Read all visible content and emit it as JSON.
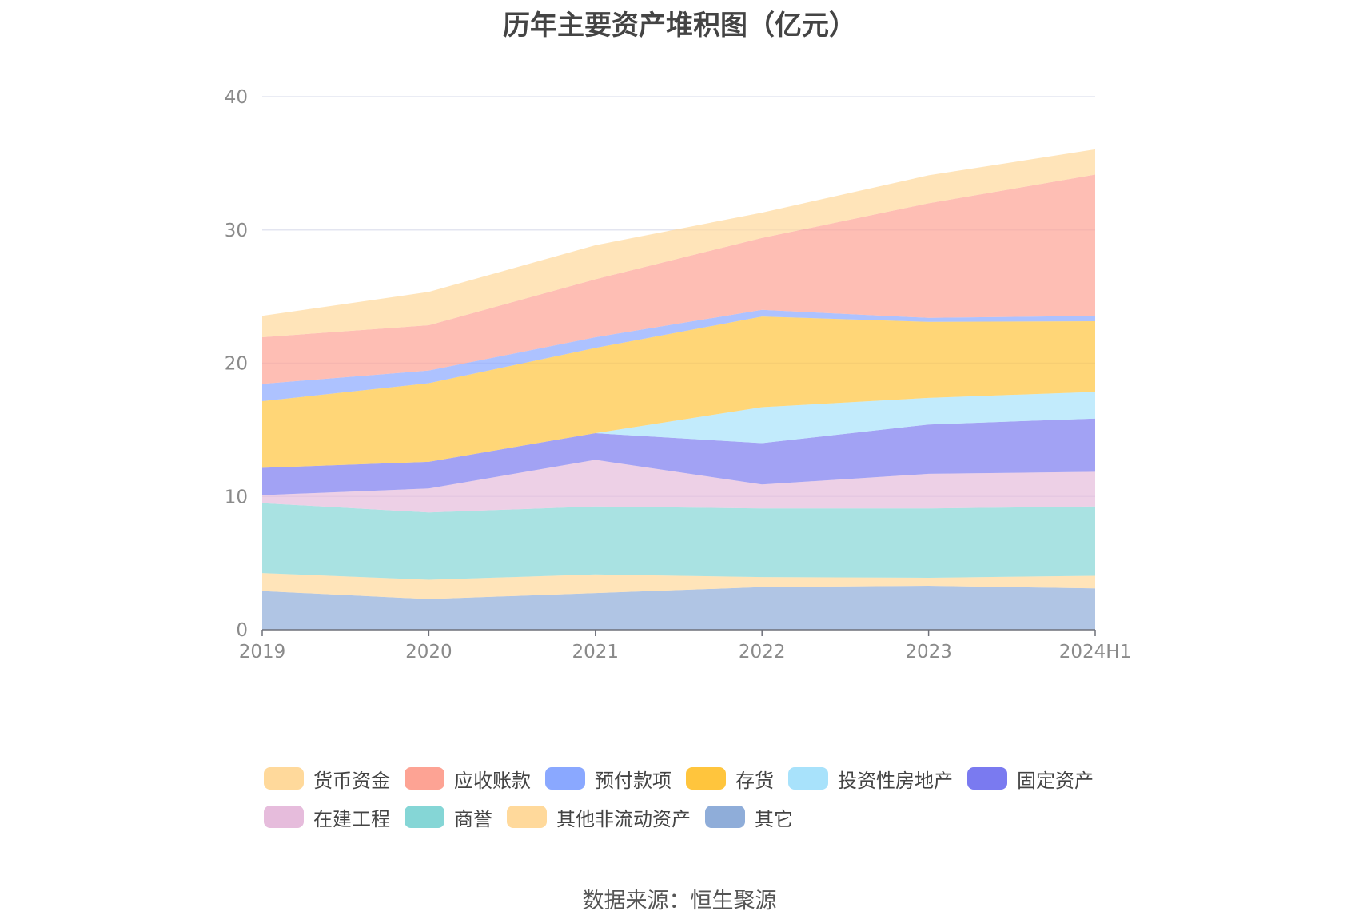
{
  "chart_data": {
    "type": "area",
    "title": "历年主要资产堆积图（亿元）",
    "x": [
      "2019",
      "2020",
      "2021",
      "2022",
      "2023",
      "2024H1"
    ],
    "ylim": [
      0,
      40
    ],
    "yticks": [
      0,
      10,
      20,
      30,
      40
    ],
    "stacked": true,
    "grid": true,
    "legend_position": "bottom",
    "series": [
      {
        "name": "其它",
        "color": "#8fadd9",
        "values": [
          2.9,
          2.3,
          2.75,
          3.2,
          3.3,
          3.1
        ]
      },
      {
        "name": "其他非流动资产",
        "color": "#ffd99b",
        "values": [
          1.35,
          1.45,
          1.4,
          0.75,
          0.6,
          0.95
        ]
      },
      {
        "name": "商誉",
        "color": "#85d6d6",
        "values": [
          5.25,
          5.05,
          5.1,
          5.15,
          5.2,
          5.2
        ]
      },
      {
        "name": "在建工程",
        "color": "#e6bcdc",
        "values": [
          0.6,
          1.8,
          3.5,
          1.8,
          2.6,
          2.6
        ]
      },
      {
        "name": "固定资产",
        "color": "#7a7af0",
        "values": [
          2.05,
          2.0,
          2.0,
          3.1,
          3.7,
          4.0
        ]
      },
      {
        "name": "投资性房地产",
        "color": "#a8e2fb",
        "values": [
          0.0,
          0.0,
          0.0,
          2.7,
          2.0,
          2.0
        ]
      },
      {
        "name": "存货",
        "color": "#ffc53d",
        "values": [
          5.0,
          5.9,
          6.4,
          6.8,
          5.7,
          5.3
        ]
      },
      {
        "name": "预付款项",
        "color": "#8aa8ff",
        "values": [
          1.3,
          0.95,
          0.8,
          0.5,
          0.3,
          0.4
        ]
      },
      {
        "name": "应收账款",
        "color": "#fda394",
        "values": [
          3.5,
          3.4,
          4.35,
          5.4,
          8.6,
          10.6
        ]
      },
      {
        "name": "货币资金",
        "color": "#ffd99b",
        "values": [
          1.6,
          2.5,
          2.55,
          1.9,
          2.1,
          1.9
        ]
      }
    ],
    "legend": [
      "货币资金",
      "应收账款",
      "预付款项",
      "存货",
      "投资性房地产",
      "固定资产",
      "在建工程",
      "商誉",
      "其他非流动资产",
      "其它"
    ]
  },
  "source": "数据来源：恒生聚源"
}
